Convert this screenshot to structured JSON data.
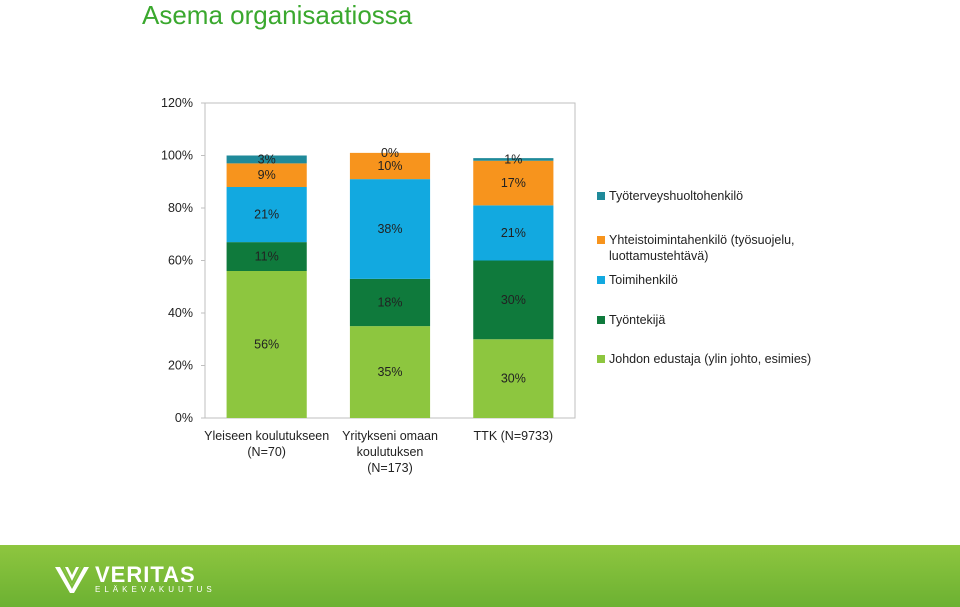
{
  "title": "Asema organisaatiossa",
  "chart_data": {
    "type": "bar",
    "stacked": true,
    "categories": [
      "Yleiseen koulutukseen (N=70)",
      "Yritykseni omaan koulutuksen (N=173)",
      "TTK (N=9733)"
    ],
    "category_lines": [
      [
        "Yleiseen koulutukseen",
        "(N=70)"
      ],
      [
        "Yritykseni omaan",
        "koulutuksen",
        "(N=173)"
      ],
      [
        "TTK (N=9733)"
      ]
    ],
    "y_ticks": [
      "0%",
      "20%",
      "40%",
      "60%",
      "80%",
      "100%",
      "120%"
    ],
    "ylim": [
      0,
      120
    ],
    "legend_position": "right",
    "series": [
      {
        "name": "Johdon edustaja (ylin johto, esimies)",
        "color": "#8dc63f",
        "values": [
          56,
          35,
          30
        ],
        "labels": [
          "56%",
          "35%",
          "30%"
        ]
      },
      {
        "name": "Työntekijä",
        "color": "#0f7a3c",
        "values": [
          11,
          18,
          30
        ],
        "labels": [
          "11%",
          "18%",
          "30%"
        ]
      },
      {
        "name": "Toimihenkilö",
        "color": "#12a9e0",
        "values": [
          21,
          38,
          21
        ],
        "labels": [
          "21%",
          "38%",
          "21%"
        ]
      },
      {
        "name": "Yhteistoimintahenkilö (työsuojelu, luottamustehtävä)",
        "color": "#f7941d",
        "values": [
          9,
          10,
          17
        ],
        "labels": [
          "9%",
          "10%",
          "17%"
        ]
      },
      {
        "name": "Työterveyshuoltohenkilö",
        "color": "#1f8a9a",
        "values": [
          3,
          0,
          1
        ],
        "labels": [
          "3%",
          "0%",
          "1%"
        ]
      }
    ],
    "legend_order": [
      {
        "lines": [
          "Työterveyshuoltohenkilö"
        ],
        "color": "#1f8a9a"
      },
      {
        "lines": [
          "Yhteistoimintahenkilö (työsuojelu,",
          "luottamustehtävä)"
        ],
        "color": "#f7941d"
      },
      {
        "lines": [
          "Toimihenkilö"
        ],
        "color": "#12a9e0"
      },
      {
        "lines": [
          "Työntekijä"
        ],
        "color": "#0f7a3c"
      },
      {
        "lines": [
          "Johdon edustaja (ylin johto, esimies)"
        ],
        "color": "#8dc63f"
      }
    ]
  },
  "footer": {
    "logo_name": "VERITAS",
    "logo_sub": "ELÄKEVAKUUTUS",
    "color": "#7dbe3a"
  }
}
